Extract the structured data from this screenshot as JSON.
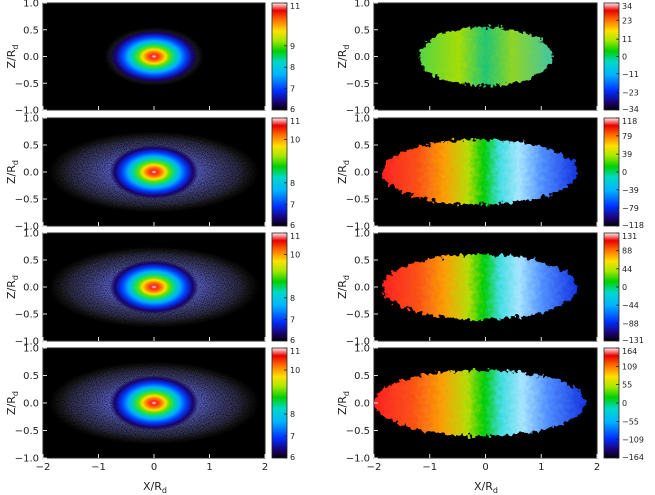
{
  "figure": {
    "description_axes": {
      "xlabel_main": "X/R",
      "xlabel_sub": "d",
      "ylabel_main": "Z/R",
      "ylabel_sub": "d"
    },
    "x_ticks": [
      "−2",
      "−1",
      "0",
      "1",
      "2"
    ],
    "y_ticks": [
      "1.0",
      "0.5",
      "0.0",
      "−0.5",
      "−1.0"
    ]
  },
  "chart_data": [
    {
      "type": "heatmap",
      "panel": "left-row-1",
      "xlim": [
        -2,
        2
      ],
      "ylim": [
        -1,
        1
      ],
      "colorbar_ticks": [
        11,
        9,
        8,
        7,
        6
      ],
      "colorbar_range": [
        6,
        11
      ],
      "colormap": "rainbow",
      "peak": 11,
      "shape": "centrally concentrated elliptical density, flattened along X"
    },
    {
      "type": "heatmap",
      "panel": "left-row-2",
      "xlim": [
        -2,
        2
      ],
      "ylim": [
        -1,
        1
      ],
      "colorbar_ticks": [
        11,
        10,
        8,
        7,
        6
      ],
      "colorbar_range": [
        6,
        11
      ],
      "colormap": "rainbow",
      "peak": 11,
      "shape": "central density with extended outer disk"
    },
    {
      "type": "heatmap",
      "panel": "left-row-3",
      "xlim": [
        -2,
        2
      ],
      "ylim": [
        -1,
        1
      ],
      "colorbar_ticks": [
        11,
        10,
        8,
        7,
        6
      ],
      "colorbar_range": [
        6,
        11
      ],
      "colormap": "rainbow",
      "peak": 11,
      "shape": "central density with extended outer disk"
    },
    {
      "type": "heatmap",
      "panel": "left-row-4",
      "xlim": [
        -2,
        2
      ],
      "ylim": [
        -1,
        1
      ],
      "colorbar_ticks": [
        11,
        10,
        8,
        7,
        6
      ],
      "colorbar_range": [
        6,
        11
      ],
      "colormap": "rainbow",
      "peak": 11,
      "shape": "central density with extended outer disk"
    },
    {
      "type": "heatmap",
      "panel": "right-row-1",
      "xlim": [
        -2,
        2
      ],
      "ylim": [
        -1,
        1
      ],
      "colorbar_ticks": [
        34,
        23,
        11,
        0,
        -11,
        -23,
        -34
      ],
      "colorbar_range": [
        -34,
        34
      ],
      "colormap": "rainbow",
      "gradient": "none",
      "extent_x": 1.2
    },
    {
      "type": "heatmap",
      "panel": "right-row-2",
      "xlim": [
        -2,
        2
      ],
      "ylim": [
        -1,
        1
      ],
      "colorbar_ticks": [
        118,
        79,
        39,
        0,
        -39,
        -79,
        -118
      ],
      "colorbar_range": [
        -118,
        118
      ],
      "colormap": "rainbow",
      "gradient": "positive left to negative right",
      "extent_x": 1.75
    },
    {
      "type": "heatmap",
      "panel": "right-row-3",
      "xlim": [
        -2,
        2
      ],
      "ylim": [
        -1,
        1
      ],
      "colorbar_ticks": [
        131,
        88,
        44,
        0,
        -44,
        -88,
        -131
      ],
      "colorbar_range": [
        -131,
        131
      ],
      "colormap": "rainbow",
      "gradient": "positive left to negative right",
      "extent_x": 1.75
    },
    {
      "type": "heatmap",
      "panel": "right-row-4",
      "xlim": [
        -2,
        2
      ],
      "ylim": [
        -1,
        1
      ],
      "colorbar_ticks": [
        164,
        109,
        55,
        0,
        -55,
        -109,
        -164
      ],
      "colorbar_range": [
        -164,
        164
      ],
      "colormap": "rainbow",
      "gradient": "positive left to negative right",
      "extent_x": 1.9
    }
  ]
}
